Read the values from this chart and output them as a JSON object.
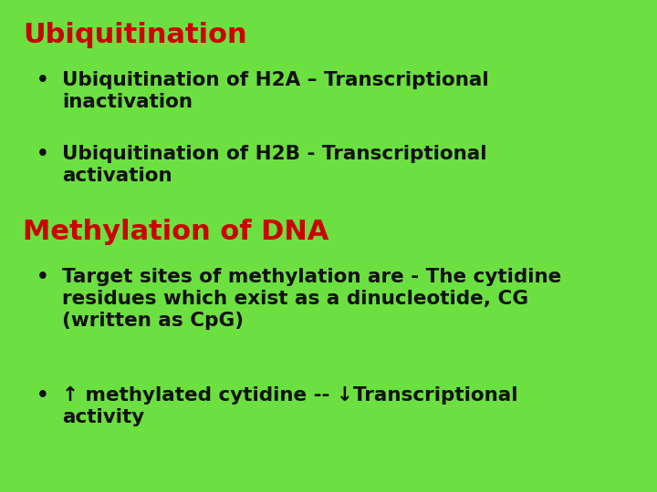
{
  "background_color": "#6be040",
  "title1": "Ubiquitination",
  "title1_color": "#cc0000",
  "title1_fontsize": 22,
  "title2": "Methylation of DNA",
  "title2_color": "#cc0000",
  "title2_fontsize": 22,
  "bullet_color": "#111111",
  "bullet_fontsize": 15.5,
  "bullet1_1": "Ubiquitination of H2A – Transcriptional\ninactivation",
  "bullet1_2": "Ubiquitination of H2B - Transcriptional\nactivation",
  "bullet2_1": "Target sites of methylation are - The cytidine\nresidues which exist as a dinucleotide, CG\n(written as CpG)",
  "bullet2_2": "↑ methylated cytidine -- ↓Transcriptional\nactivity",
  "bullet_symbol": "•"
}
